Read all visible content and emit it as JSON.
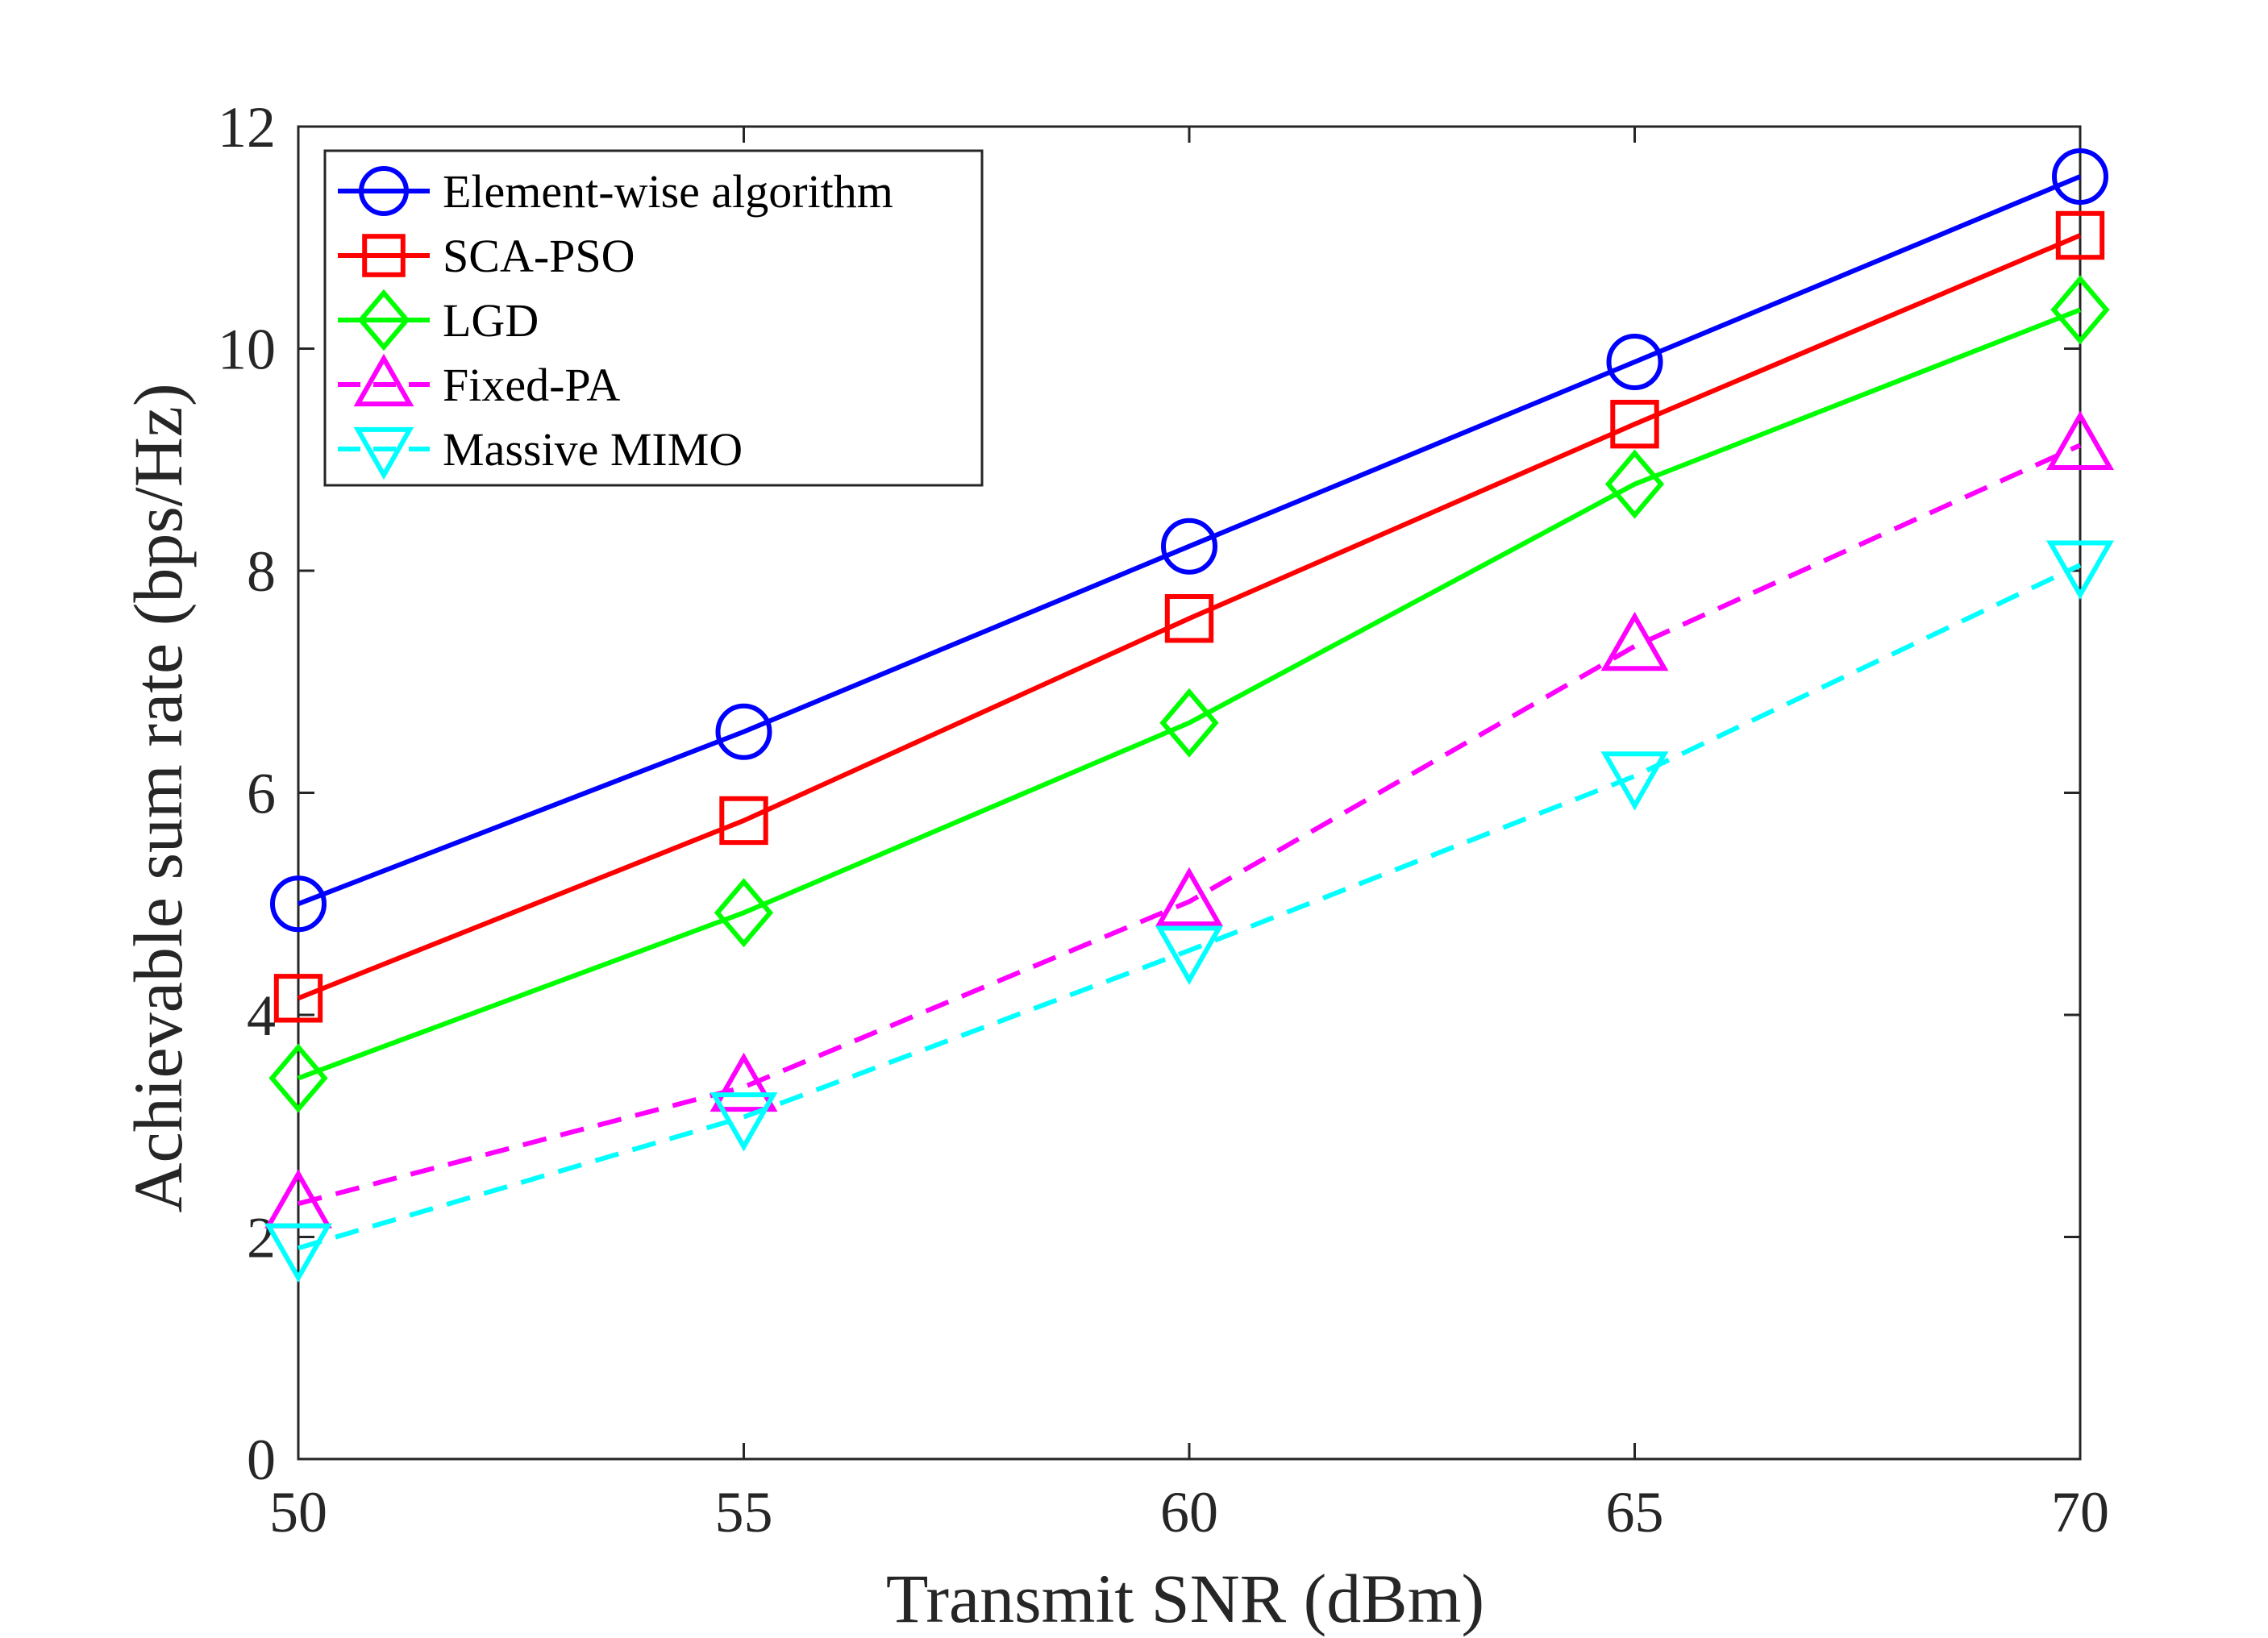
{
  "chart_data": {
    "type": "line",
    "x": [
      50,
      55,
      60,
      65,
      70
    ],
    "xlabel": "Transmit SNR (dBm)",
    "ylabel": "Achievable sum rate (bps/Hz)",
    "xlim": [
      50,
      70
    ],
    "ylim": [
      0,
      12
    ],
    "xticks": [
      50,
      55,
      60,
      65,
      70
    ],
    "yticks": [
      0,
      2,
      4,
      6,
      8,
      10,
      12
    ],
    "xtick_labels": [
      "50",
      "55",
      "60",
      "65",
      "70"
    ],
    "ytick_labels": [
      "0",
      "2",
      "4",
      "6",
      "8",
      "10",
      "12"
    ],
    "grid": false,
    "legend_position": "top-left",
    "series": [
      {
        "name": "Element-wise algorithm",
        "values": [
          5.0,
          6.55,
          8.22,
          9.88,
          11.55
        ],
        "color": "#0000ff",
        "marker": "circle",
        "dash": "solid"
      },
      {
        "name": "SCA-PSO",
        "values": [
          4.15,
          5.75,
          7.57,
          9.32,
          11.02
        ],
        "color": "#ff0000",
        "marker": "square",
        "dash": "solid"
      },
      {
        "name": "LGD",
        "values": [
          3.43,
          4.92,
          6.63,
          8.78,
          10.35
        ],
        "color": "#00ff00",
        "marker": "diamond",
        "dash": "solid"
      },
      {
        "name": "Fixed-PA",
        "values": [
          2.3,
          3.35,
          5.02,
          7.32,
          9.13
        ],
        "color": "#ff00ff",
        "marker": "triangle-up",
        "dash": "dashed"
      },
      {
        "name": "Massive MIMO",
        "values": [
          1.9,
          3.08,
          4.58,
          6.15,
          8.05
        ],
        "color": "#00ffff",
        "marker": "triangle-down",
        "dash": "dashed"
      }
    ]
  }
}
